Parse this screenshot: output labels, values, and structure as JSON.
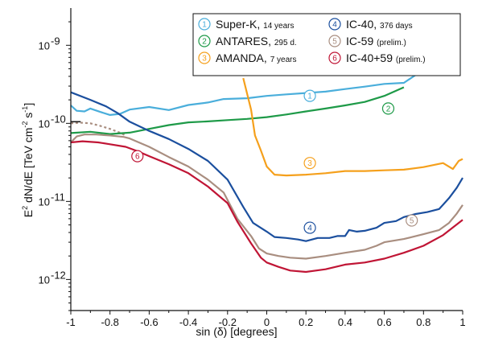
{
  "chart_data": {
    "type": "line",
    "title": "",
    "xlabel": "sin (δ) [degrees]",
    "ylabel_main": "E",
    "ylabel_sup": "2",
    "ylabel_rest": " dN/dE [TeV cm",
    "ylabel_unit_sup1": "-2",
    "ylabel_unit_mid": " s",
    "ylabel_unit_sup2": "-1",
    "ylabel_end": "]",
    "xlim": [
      -1,
      1
    ],
    "ylim": [
      4e-13,
      3e-09
    ],
    "yscale": "log",
    "grid": false,
    "legend_position": "top-right",
    "x_ticks": [
      "-1",
      "-0.8",
      "-0.6",
      "-0.4",
      "-0.2",
      "0",
      "0.2",
      "0.4",
      "0.6",
      "0.8",
      "1"
    ],
    "y_ticks": [
      {
        "base": "10",
        "exp": "-12",
        "value": 1e-12
      },
      {
        "base": "10",
        "exp": "-11",
        "value": 1e-11
      },
      {
        "base": "10",
        "exp": "-10",
        "value": 1e-10
      },
      {
        "base": "10",
        "exp": "-9",
        "value": 1e-09
      }
    ],
    "series": [
      {
        "marker": "1",
        "name": "Super-K,",
        "note": "14 years",
        "color": "#4aaedb",
        "label_at": [
          0.22,
          2.25e-10
        ],
        "points": [
          [
            -1,
            1.7e-10
          ],
          [
            -0.97,
            1.45e-10
          ],
          [
            -0.93,
            1.42e-10
          ],
          [
            -0.9,
            1.55e-10
          ],
          [
            -0.85,
            1.4e-10
          ],
          [
            -0.8,
            1.28e-10
          ],
          [
            -0.75,
            1.32e-10
          ],
          [
            -0.7,
            1.5e-10
          ],
          [
            -0.6,
            1.62e-10
          ],
          [
            -0.5,
            1.48e-10
          ],
          [
            -0.4,
            1.72e-10
          ],
          [
            -0.3,
            1.85e-10
          ],
          [
            -0.22,
            2.05e-10
          ],
          [
            -0.1,
            2.1e-10
          ],
          [
            0,
            2.25e-10
          ],
          [
            0.1,
            2.35e-10
          ],
          [
            0.2,
            2.45e-10
          ],
          [
            0.3,
            2.55e-10
          ],
          [
            0.4,
            2.75e-10
          ],
          [
            0.5,
            2.95e-10
          ],
          [
            0.6,
            3.2e-10
          ],
          [
            0.7,
            3.3e-10
          ],
          [
            0.78,
            4.5e-10
          ]
        ]
      },
      {
        "marker": "2",
        "name": "ANTARES,",
        "note": "295 d.",
        "color": "#1e9a48",
        "label_at": [
          0.62,
          1.55e-10
        ],
        "points": [
          [
            -1,
            7.5e-11
          ],
          [
            -0.9,
            7.8e-11
          ],
          [
            -0.8,
            7.3e-11
          ],
          [
            -0.7,
            7.6e-11
          ],
          [
            -0.6,
            8.5e-11
          ],
          [
            -0.5,
            9.5e-11
          ],
          [
            -0.4,
            1.03e-10
          ],
          [
            -0.3,
            1.06e-10
          ],
          [
            -0.2,
            1.1e-10
          ],
          [
            -0.1,
            1.14e-10
          ],
          [
            0,
            1.2e-10
          ],
          [
            0.1,
            1.3e-10
          ],
          [
            0.2,
            1.42e-10
          ],
          [
            0.3,
            1.55e-10
          ],
          [
            0.4,
            1.7e-10
          ],
          [
            0.5,
            1.88e-10
          ],
          [
            0.6,
            2.25e-10
          ],
          [
            0.7,
            2.9e-10
          ]
        ]
      },
      {
        "marker": "3",
        "name": "AMANDA,",
        "note": "7 years",
        "color": "#f5a01c",
        "label_at": [
          0.22,
          3.1e-11
        ],
        "points": [
          [
            -0.12,
            3.8e-10
          ],
          [
            -0.08,
            1.5e-10
          ],
          [
            -0.06,
            7e-11
          ],
          [
            -0.03,
            4.5e-11
          ],
          [
            0,
            2.8e-11
          ],
          [
            0.04,
            2.2e-11
          ],
          [
            0.1,
            2.15e-11
          ],
          [
            0.2,
            2.2e-11
          ],
          [
            0.3,
            2.3e-11
          ],
          [
            0.4,
            2.45e-11
          ],
          [
            0.5,
            2.45e-11
          ],
          [
            0.6,
            2.5e-11
          ],
          [
            0.7,
            2.55e-11
          ],
          [
            0.8,
            2.75e-11
          ],
          [
            0.9,
            3.1e-11
          ],
          [
            0.95,
            2.6e-11
          ],
          [
            0.98,
            3.3e-11
          ],
          [
            1,
            3.5e-11
          ]
        ]
      },
      {
        "marker": "4",
        "name": "IC-40,",
        "note": "376 days",
        "color": "#1b4f9e",
        "label_at": [
          0.22,
          4.6e-12
        ],
        "points": [
          [
            -1,
            2.5e-10
          ],
          [
            -0.9,
            2e-10
          ],
          [
            -0.82,
            1.65e-10
          ],
          [
            -0.76,
            1.35e-10
          ],
          [
            -0.7,
            1.05e-10
          ],
          [
            -0.6,
            8e-11
          ],
          [
            -0.5,
            6.3e-11
          ],
          [
            -0.4,
            4.7e-11
          ],
          [
            -0.3,
            3.3e-11
          ],
          [
            -0.2,
            1.9e-11
          ],
          [
            -0.12,
            8.5e-12
          ],
          [
            -0.07,
            5.3e-12
          ],
          [
            0,
            4.1e-12
          ],
          [
            0.04,
            3.5e-12
          ],
          [
            0.1,
            3.4e-12
          ],
          [
            0.16,
            3.25e-12
          ],
          [
            0.2,
            3.1e-12
          ],
          [
            0.26,
            3.4e-12
          ],
          [
            0.32,
            3.4e-12
          ],
          [
            0.36,
            3.6e-12
          ],
          [
            0.4,
            3.6e-12
          ],
          [
            0.42,
            4.3e-12
          ],
          [
            0.46,
            4.1e-12
          ],
          [
            0.5,
            4.2e-12
          ],
          [
            0.56,
            4.6e-12
          ],
          [
            0.6,
            5.3e-12
          ],
          [
            0.66,
            5.6e-12
          ],
          [
            0.7,
            6.3e-12
          ],
          [
            0.76,
            6.9e-12
          ],
          [
            0.82,
            7.3e-12
          ],
          [
            0.88,
            8e-12
          ],
          [
            0.93,
            1.1e-11
          ],
          [
            0.97,
            1.5e-11
          ],
          [
            1,
            2e-11
          ]
        ]
      },
      {
        "marker": "5",
        "name": "IC-59",
        "note": "(prelim.)",
        "color": "#a98e80",
        "label_at": [
          0.74,
          5.7e-12
        ],
        "points": [
          [
            -1,
            5.7e-11
          ],
          [
            -0.97,
            6.8e-11
          ],
          [
            -0.93,
            7.2e-11
          ],
          [
            -0.87,
            7.2e-11
          ],
          [
            -0.8,
            7e-11
          ],
          [
            -0.73,
            6.7e-11
          ],
          [
            -0.7,
            6.4e-11
          ],
          [
            -0.6,
            5e-11
          ],
          [
            -0.5,
            3.7e-11
          ],
          [
            -0.4,
            2.8e-11
          ],
          [
            -0.3,
            1.9e-11
          ],
          [
            -0.22,
            1.3e-11
          ],
          [
            -0.15,
            6e-12
          ],
          [
            -0.08,
            3.6e-12
          ],
          [
            -0.04,
            2.5e-12
          ],
          [
            0,
            2.15e-12
          ],
          [
            0.06,
            2e-12
          ],
          [
            0.12,
            1.9e-12
          ],
          [
            0.2,
            1.85e-12
          ],
          [
            0.3,
            2e-12
          ],
          [
            0.4,
            2.2e-12
          ],
          [
            0.5,
            2.4e-12
          ],
          [
            0.56,
            2.7e-12
          ],
          [
            0.6,
            3e-12
          ],
          [
            0.7,
            3.3e-12
          ],
          [
            0.8,
            3.8e-12
          ],
          [
            0.88,
            4.3e-12
          ],
          [
            0.93,
            5.3e-12
          ],
          [
            0.97,
            7e-12
          ],
          [
            1,
            9e-12
          ]
        ]
      },
      {
        "marker": "6",
        "name": "IC-40+59",
        "note": "(prelim.)",
        "color": "#c01535",
        "label_at": [
          -0.66,
          3.8e-11
        ],
        "points": [
          [
            -1,
            5.7e-11
          ],
          [
            -0.94,
            5.9e-11
          ],
          [
            -0.86,
            5.7e-11
          ],
          [
            -0.8,
            5.4e-11
          ],
          [
            -0.72,
            5e-11
          ],
          [
            -0.66,
            4.4e-11
          ],
          [
            -0.6,
            3.8e-11
          ],
          [
            -0.5,
            3e-11
          ],
          [
            -0.4,
            2.3e-11
          ],
          [
            -0.3,
            1.55e-11
          ],
          [
            -0.2,
            9.5e-12
          ],
          [
            -0.15,
            5.5e-12
          ],
          [
            -0.08,
            2.9e-12
          ],
          [
            -0.03,
            1.9e-12
          ],
          [
            0,
            1.65e-12
          ],
          [
            0.06,
            1.45e-12
          ],
          [
            0.12,
            1.3e-12
          ],
          [
            0.2,
            1.25e-12
          ],
          [
            0.3,
            1.35e-12
          ],
          [
            0.4,
            1.55e-12
          ],
          [
            0.5,
            1.65e-12
          ],
          [
            0.6,
            1.85e-12
          ],
          [
            0.7,
            2.2e-12
          ],
          [
            0.8,
            2.7e-12
          ],
          [
            0.9,
            3.7e-12
          ],
          [
            1,
            5.8e-12
          ]
        ]
      }
    ],
    "extra_dotted": {
      "color": "#a98e80",
      "points": [
        [
          -1,
          1e-10
        ],
        [
          -0.95,
          1.02e-10
        ],
        [
          -0.9,
          1e-10
        ],
        [
          -0.85,
          9.3e-11
        ],
        [
          -0.8,
          8.5e-11
        ],
        [
          -0.75,
          7.6e-11
        ],
        [
          -0.72,
          7e-11
        ]
      ]
    },
    "extra_black": {
      "color": "#1a1a1a",
      "points": [
        [
          -1,
          1.05e-10
        ],
        [
          -0.95,
          1.05e-10
        ]
      ]
    }
  }
}
